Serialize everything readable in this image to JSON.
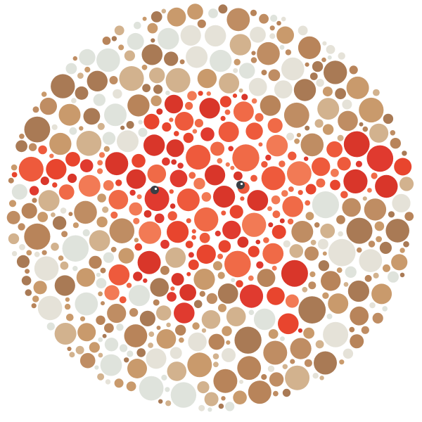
{
  "image": {
    "subject": "color-vision-test-plate",
    "hidden_figure": "crab",
    "colors": {
      "background": "#ffffff",
      "figure": [
        "#e8452e",
        "#f06a47",
        "#d9362a",
        "#ee5a3c",
        "#e03a2f",
        "#f27a55"
      ],
      "ground": [
        "#dfe3dc",
        "#c99a6c",
        "#b8845a",
        "#d2b28e",
        "#e5e2d8",
        "#bf8d63",
        "#a97a55"
      ],
      "eye": "#3a3f45"
    }
  }
}
